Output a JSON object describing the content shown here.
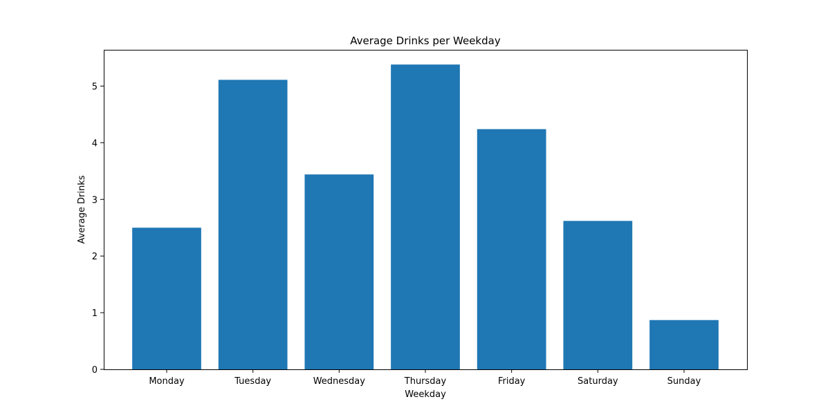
{
  "chart_data": {
    "type": "bar",
    "title": "Average Drinks per Weekday",
    "xlabel": "Weekday",
    "ylabel": "Average Drinks",
    "categories": [
      "Monday",
      "Tuesday",
      "Wednesday",
      "Thursday",
      "Friday",
      "Saturday",
      "Sunday"
    ],
    "values": [
      2.5,
      5.11,
      3.44,
      5.38,
      4.24,
      2.62,
      0.87
    ],
    "ylim": [
      0,
      5.64
    ],
    "yticks": [
      "0",
      "1",
      "2",
      "3",
      "4",
      "5"
    ],
    "grid": false,
    "legend": "none",
    "bar_color": "#1f77b4"
  }
}
